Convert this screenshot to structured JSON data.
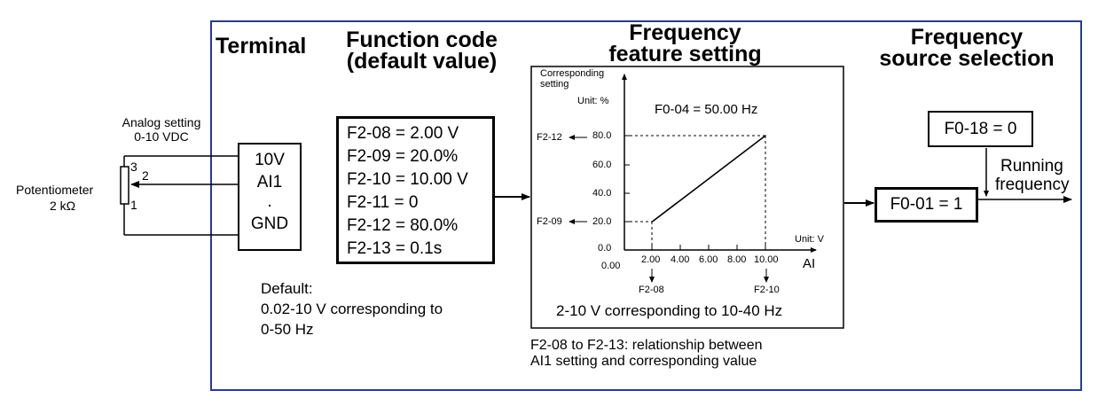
{
  "headers": {
    "terminal": "Terminal",
    "function_code": [
      "Function code",
      "(default value)"
    ],
    "frequency_feature": [
      "Frequency",
      "feature setting"
    ],
    "frequency_source": [
      "Frequency",
      "source selection"
    ]
  },
  "potentiometer": {
    "label": "Potentiometer",
    "value": "2 kΩ",
    "pins": [
      "3",
      "2",
      "1"
    ],
    "analog_setting": [
      "Analog setting",
      "0-10 VDC"
    ]
  },
  "terminal_block": {
    "rows": [
      "10V",
      "AI1",
      ".",
      "GND"
    ]
  },
  "function_codes": [
    "F2-08 = 2.00 V",
    "F2-09 = 20.0%",
    "F2-10 = 10.00 V",
    "F2-11 = 0",
    "F2-12 = 80.0%",
    "F2-13 = 0.1s"
  ],
  "default_note": [
    "Default:",
    "0.02-10 V corresponding to",
    "0-50 Hz"
  ],
  "graph": {
    "ylabel": [
      "Corresponding",
      "setting"
    ],
    "yunit": "Unit: %",
    "f004": "F0-04 = 50.00 Hz",
    "xunit": "Unit: V",
    "xlabel": "AI",
    "yticks": [
      "80.0",
      "60.0",
      "40.0",
      "20.0",
      "0.0"
    ],
    "xticks": [
      "0.00",
      "2.00",
      "4.00",
      "6.00",
      "8.00",
      "10.00"
    ],
    "left_refs": [
      "F2-12",
      "F2-09"
    ],
    "bottom_refs": [
      "F2-08",
      "F2-10"
    ],
    "caption": "2-10 V corresponding to 10-40 Hz"
  },
  "chart_data": {
    "type": "line",
    "x": [
      2.0,
      10.0
    ],
    "y": [
      20.0,
      80.0
    ],
    "xlabel": "AI",
    "ylabel": "Corresponding setting",
    "xlim": [
      0,
      10
    ],
    "ylim": [
      0,
      80
    ]
  },
  "relationship_note": [
    "F2-08 to F2-13: relationship between",
    "AI1 setting and corresponding value"
  ],
  "source": {
    "f018": "F0-18 = 0",
    "f001": "F0-01 = 1",
    "running": [
      "Running",
      "frequency"
    ]
  }
}
